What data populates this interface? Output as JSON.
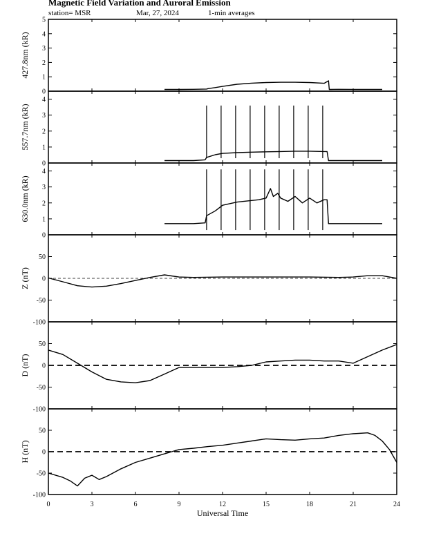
{
  "header": {
    "title": "Magnetic Field Variation and Auroral Emission",
    "station": "station= MSR",
    "date": "Mar, 27, 2024",
    "averaging": "1-min averages"
  },
  "chart_data": {
    "type": "line",
    "xlabel": "Universal Time",
    "xlim": [
      0,
      24
    ],
    "xticks": [
      0,
      3,
      6,
      9,
      12,
      15,
      18,
      21,
      24
    ],
    "panels": [
      {
        "ylabel": "427.8nm (kR)",
        "ylim": [
          0,
          5
        ],
        "yticks": [
          0,
          1,
          2,
          3,
          4,
          5
        ],
        "x": [
          8,
          9,
          10,
          10.9,
          11,
          11.5,
          12,
          13,
          14,
          15,
          16,
          17,
          18,
          19,
          19.3,
          19.35,
          20,
          21,
          22,
          23
        ],
        "values": [
          0.12,
          0.12,
          0.13,
          0.15,
          0.18,
          0.25,
          0.33,
          0.48,
          0.56,
          0.6,
          0.62,
          0.62,
          0.6,
          0.55,
          0.72,
          0.12,
          0.13,
          0.12,
          0.12,
          0.12
        ],
        "spikes": [],
        "zero_line": false
      },
      {
        "ylabel": "557.7nm (kR)",
        "ylim": [
          0,
          4.5
        ],
        "yticks": [
          0,
          1,
          2,
          3,
          4
        ],
        "x": [
          8,
          9,
          10,
          10.8,
          10.9,
          11.5,
          12,
          13,
          14,
          15,
          16,
          17,
          18,
          19,
          19.2,
          19.3,
          20,
          21,
          22,
          23
        ],
        "values": [
          0.15,
          0.15,
          0.15,
          0.2,
          0.35,
          0.52,
          0.6,
          0.65,
          0.68,
          0.7,
          0.72,
          0.74,
          0.74,
          0.72,
          0.72,
          0.15,
          0.15,
          0.15,
          0.15,
          0.15
        ],
        "spikes": [
          {
            "x": 10.9,
            "y": 3.6
          },
          {
            "x": 11.9,
            "y": 3.6
          },
          {
            "x": 12.9,
            "y": 3.6
          },
          {
            "x": 13.9,
            "y": 3.6
          },
          {
            "x": 14.9,
            "y": 3.6
          },
          {
            "x": 15.9,
            "y": 3.6
          },
          {
            "x": 16.9,
            "y": 3.6
          },
          {
            "x": 17.9,
            "y": 3.6
          },
          {
            "x": 18.9,
            "y": 3.6
          }
        ],
        "zero_line": false
      },
      {
        "ylabel": "630.0nm (kR)",
        "ylim": [
          0,
          4.5
        ],
        "yticks": [
          0,
          1,
          2,
          3,
          4
        ],
        "x": [
          8,
          9,
          10,
          10.8,
          10.9,
          11.5,
          12,
          13,
          14,
          14.5,
          15,
          15.3,
          15.5,
          15.8,
          16,
          16.5,
          17,
          17.5,
          18,
          18.5,
          19,
          19.2,
          19.3,
          20,
          21,
          22,
          23
        ],
        "values": [
          0.7,
          0.7,
          0.7,
          0.75,
          1.2,
          1.5,
          1.85,
          2.05,
          2.15,
          2.2,
          2.3,
          2.9,
          2.4,
          2.6,
          2.3,
          2.1,
          2.4,
          2.0,
          2.3,
          2.0,
          2.2,
          2.2,
          0.7,
          0.7,
          0.7,
          0.7,
          0.7
        ],
        "spikes": [
          {
            "x": 10.9,
            "y": 4.1
          },
          {
            "x": 11.9,
            "y": 4.1
          },
          {
            "x": 12.9,
            "y": 4.1
          },
          {
            "x": 13.9,
            "y": 4.1
          },
          {
            "x": 14.9,
            "y": 4.1
          },
          {
            "x": 15.9,
            "y": 4.1
          },
          {
            "x": 16.9,
            "y": 4.1
          },
          {
            "x": 17.9,
            "y": 4.1
          },
          {
            "x": 18.9,
            "y": 4.1
          }
        ],
        "zero_line": false
      },
      {
        "ylabel": "Z (nT)",
        "ylim": [
          -100,
          100
        ],
        "yticks": [
          -100,
          -50,
          0,
          50
        ],
        "x": [
          0,
          1,
          2,
          3,
          4,
          5,
          6,
          7,
          8,
          9,
          10,
          12,
          15,
          18,
          20,
          21,
          22,
          23,
          24
        ],
        "values": [
          1,
          -8,
          -17,
          -20,
          -18,
          -12,
          -5,
          2,
          8,
          3,
          2,
          3,
          3,
          3,
          2,
          3,
          6,
          6,
          0
        ],
        "spikes": [],
        "zero_line": true,
        "zero_line_style": "thin"
      },
      {
        "ylabel": "D (nT)",
        "ylim": [
          -100,
          100
        ],
        "yticks": [
          -100,
          -50,
          0,
          50
        ],
        "x": [
          0,
          1,
          2,
          3,
          4,
          5,
          6,
          7,
          8,
          9,
          10,
          12,
          13,
          14,
          15,
          16,
          17,
          18,
          19,
          20,
          21,
          22,
          23,
          24
        ],
        "values": [
          35,
          25,
          5,
          -15,
          -32,
          -38,
          -40,
          -35,
          -20,
          -5,
          -5,
          -5,
          -3,
          0,
          8,
          10,
          12,
          12,
          10,
          10,
          5,
          20,
          35,
          48
        ],
        "spikes": [],
        "zero_line": true,
        "zero_line_style": "thick"
      },
      {
        "ylabel": "H (nT)",
        "ylim": [
          -100,
          100
        ],
        "yticks": [
          -100,
          -50,
          0,
          50
        ],
        "x": [
          0,
          1,
          1.5,
          2,
          2.5,
          3,
          3.5,
          4,
          5,
          6,
          7,
          8,
          9,
          10,
          11,
          12,
          13,
          14,
          15,
          16,
          17,
          18,
          19,
          20,
          21,
          22,
          22.5,
          23,
          23.5,
          24
        ],
        "values": [
          -50,
          -60,
          -68,
          -80,
          -62,
          -55,
          -65,
          -58,
          -40,
          -25,
          -15,
          -5,
          5,
          8,
          12,
          15,
          20,
          25,
          30,
          28,
          27,
          30,
          32,
          38,
          42,
          44,
          38,
          25,
          5,
          -25
        ],
        "spikes": [],
        "zero_line": true,
        "zero_line_style": "thick"
      }
    ]
  }
}
